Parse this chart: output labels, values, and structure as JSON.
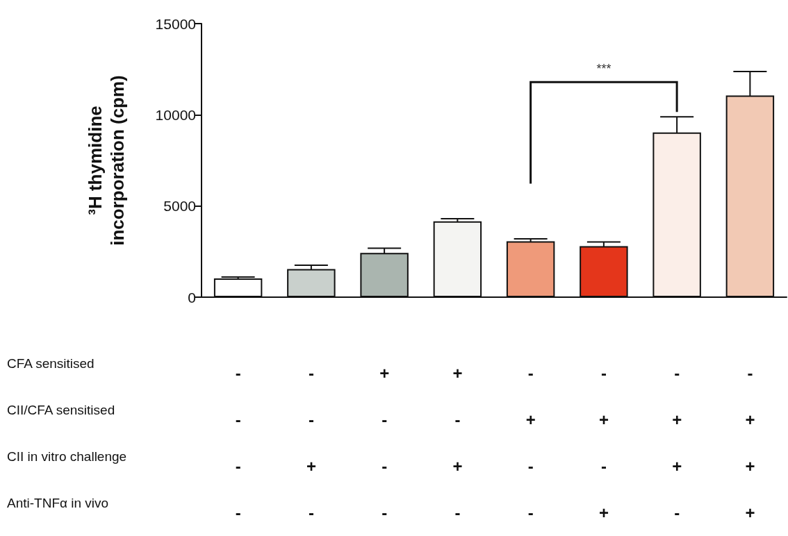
{
  "chart_data": {
    "type": "bar",
    "ylabel": "³H thymidine\nincorporation (cpm)",
    "categories": [
      "-\n-\n-\n-",
      "-\n-\n+\n-",
      "+\n-\n-\n-",
      "+\n-\n+\n-",
      "-\n+\n-\n-",
      "-\n+\n-\n+",
      "-\n+\n+\n-",
      "-\n+\n+\n+"
    ],
    "values": [
      1030,
      1540,
      2430,
      4160,
      3060,
      2800,
      9030,
      11060
    ],
    "errors": [
      70,
      210,
      250,
      140,
      140,
      230,
      860,
      1310
    ],
    "colors": [
      "#ffffff",
      "#c9d0cc",
      "#aab5af",
      "#f4f4f2",
      "#ef9a7a",
      "#e4361b",
      "#fbeee8",
      "#f2c9b4"
    ],
    "ylim": [
      0,
      15000
    ],
    "yticks": [
      0,
      5000,
      10000,
      15000
    ],
    "grid": false,
    "annotations": [
      "***",
      "CFA sensitised",
      "CII/CFA sensitised",
      "CII in vitro challenge",
      "Anti-TNFα in vivo"
    ]
  }
}
